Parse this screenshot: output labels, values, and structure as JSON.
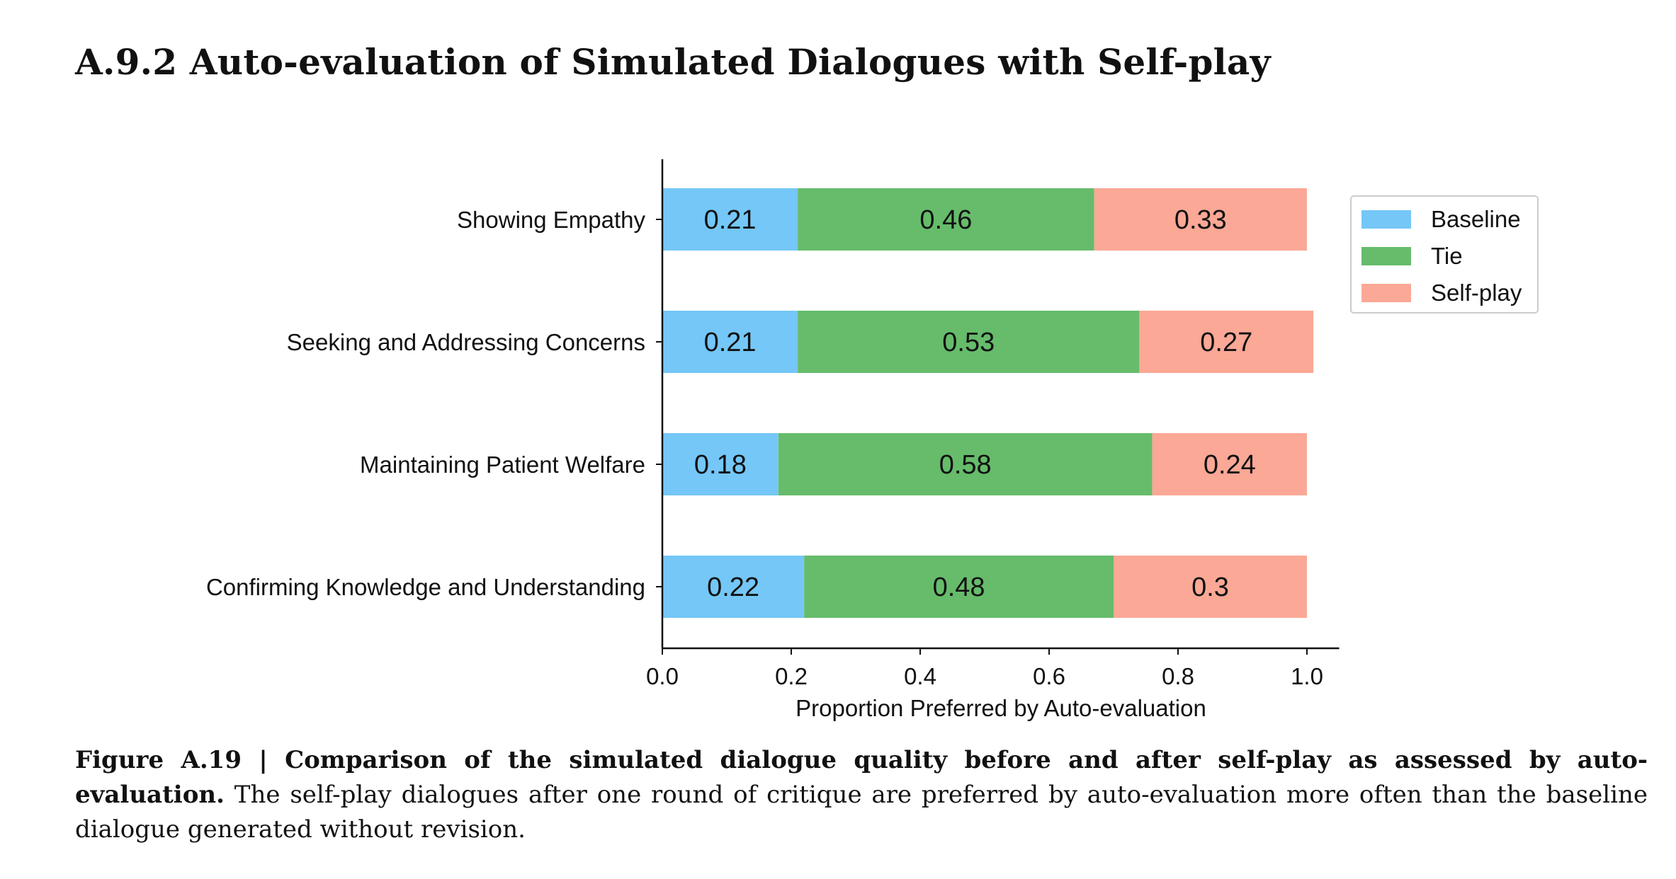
{
  "section": {
    "title": "A.9.2 Auto-evaluation of Simulated Dialogues with Self-play"
  },
  "chart_data": {
    "type": "bar",
    "orientation": "horizontal",
    "stacked": true,
    "categories": [
      "Showing Empathy",
      "Seeking and Addressing Concerns",
      "Maintaining Patient Welfare",
      "Confirming Knowledge and Understanding"
    ],
    "series": [
      {
        "name": "Baseline",
        "color": "#74c7f7",
        "values": [
          0.21,
          0.21,
          0.18,
          0.22
        ],
        "labels": [
          "0.21",
          "0.21",
          "0.18",
          "0.22"
        ]
      },
      {
        "name": "Tie",
        "color": "#66bc6b",
        "values": [
          0.46,
          0.53,
          0.58,
          0.48
        ],
        "labels": [
          "0.46",
          "0.53",
          "0.58",
          "0.48"
        ]
      },
      {
        "name": "Self-play",
        "color": "#fba896",
        "values": [
          0.33,
          0.27,
          0.24,
          0.3
        ],
        "labels": [
          "0.33",
          "0.27",
          "0.24",
          "0.3"
        ]
      }
    ],
    "xlabel": "Proportion Preferred by Auto-evaluation",
    "ylabel": "",
    "xlim": [
      0,
      1.05
    ],
    "xticks": [
      "0.0",
      "0.2",
      "0.4",
      "0.6",
      "0.8",
      "1.0"
    ],
    "legend_position": "upper-right, outside plot",
    "grid": false
  },
  "caption": {
    "figure_label": "Figure A.19 | Comparison of the simulated dialogue quality before and after self-play as assessed by auto-evaluation.",
    "text": " The self-play dialogues after one round of critique are preferred by auto-evaluation more often than the baseline dialogue generated without revision."
  }
}
